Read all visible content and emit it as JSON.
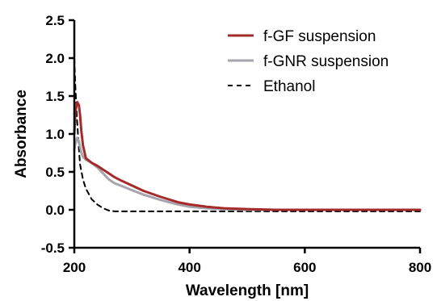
{
  "chart_data": {
    "type": "line",
    "xlabel": "Wavelength [nm]",
    "ylabel": "Absorbance",
    "xlim": [
      200,
      800
    ],
    "ylim": [
      -0.5,
      2.5
    ],
    "xticks": [
      200,
      400,
      600,
      800
    ],
    "yticks": [
      -0.5,
      0.0,
      0.5,
      1.0,
      1.5,
      2.0,
      2.5
    ],
    "xtick_labels": [
      "200",
      "400",
      "600",
      "800"
    ],
    "ytick_labels": [
      "-0.5",
      "0.0",
      "0.5",
      "1.0",
      "1.5",
      "2.0",
      "2.5"
    ],
    "grid": false,
    "legend_position": "top-right",
    "series": [
      {
        "name": "f-GF suspension",
        "color": "#a52a2a",
        "style": "solid",
        "x": [
          200,
          202,
          205,
          208,
          210,
          212,
          215,
          220,
          230,
          240,
          250,
          260,
          270,
          280,
          300,
          320,
          350,
          380,
          400,
          430,
          460,
          500,
          550,
          600,
          700,
          800
        ],
        "y": [
          1.0,
          1.3,
          1.42,
          1.38,
          1.25,
          1.05,
          0.85,
          0.68,
          0.62,
          0.58,
          0.53,
          0.48,
          0.43,
          0.39,
          0.32,
          0.25,
          0.17,
          0.1,
          0.07,
          0.04,
          0.02,
          0.01,
          0.0,
          0.0,
          0.0,
          0.0
        ]
      },
      {
        "name": "f-GNR suspension",
        "color": "#a7a4ad",
        "style": "solid",
        "x": [
          200,
          202,
          205,
          208,
          210,
          212,
          215,
          220,
          230,
          240,
          250,
          260,
          270,
          280,
          300,
          320,
          350,
          380,
          400,
          430,
          460,
          500,
          550,
          600,
          700,
          800
        ],
        "y": [
          0.8,
          0.88,
          0.95,
          0.9,
          0.83,
          0.76,
          0.7,
          0.66,
          0.62,
          0.56,
          0.48,
          0.4,
          0.35,
          0.32,
          0.26,
          0.2,
          0.13,
          0.07,
          0.04,
          0.02,
          0.01,
          0.0,
          0.0,
          0.0,
          0.0,
          0.0
        ]
      },
      {
        "name": "Ethanol",
        "color": "#000000",
        "style": "dashed",
        "x": [
          200,
          202,
          205,
          208,
          210,
          215,
          220,
          230,
          240,
          250,
          260,
          270,
          280,
          300,
          350,
          400,
          500,
          600,
          700,
          800
        ],
        "y": [
          2.0,
          1.6,
          1.15,
          0.8,
          0.6,
          0.4,
          0.28,
          0.14,
          0.07,
          0.02,
          -0.01,
          -0.02,
          -0.02,
          -0.02,
          -0.02,
          -0.02,
          -0.02,
          -0.02,
          -0.02,
          -0.02
        ]
      }
    ]
  }
}
